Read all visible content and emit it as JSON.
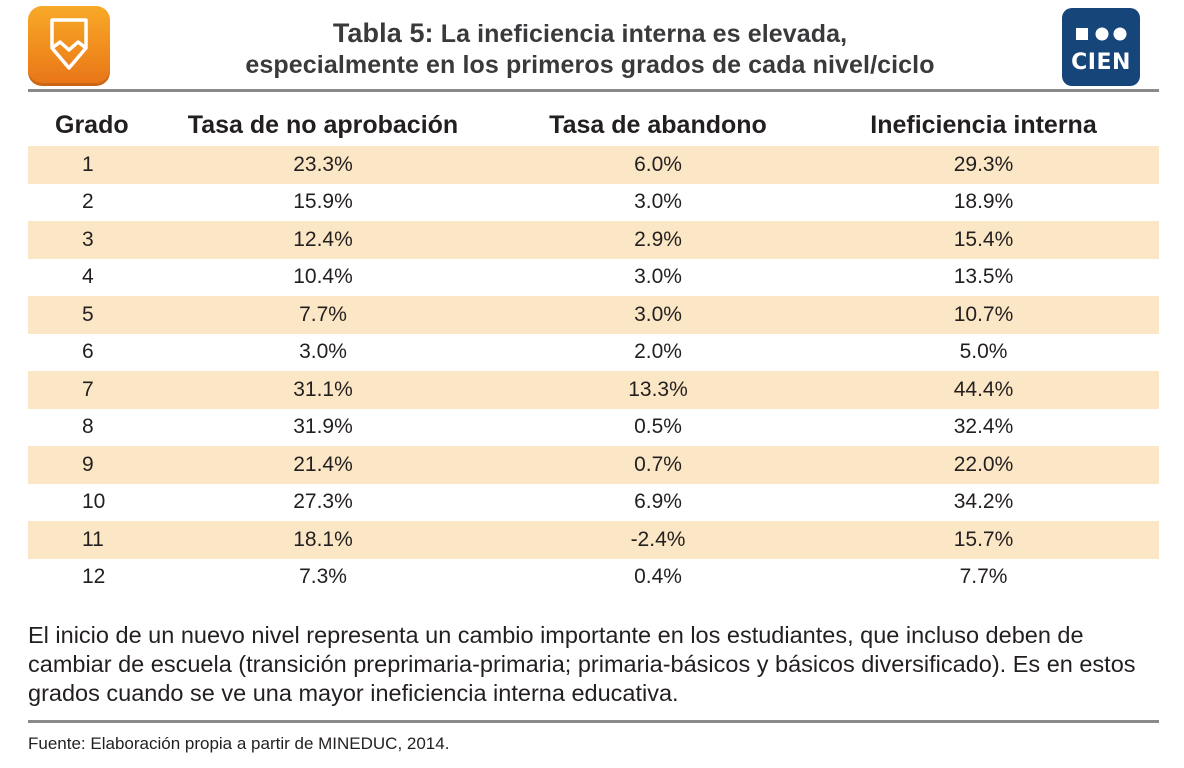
{
  "header": {
    "title_lead": "Tabla 5:",
    "title_rest": "La ineficiencia interna es elevada,",
    "title_line2": "especialmente en los primeros grados de cada nivel/ciclo"
  },
  "logo_right": {
    "brand": "CIEN"
  },
  "table": {
    "columns": [
      "Grado",
      "Tasa de no aprobación",
      "Tasa de abandono",
      "Ineficiencia interna"
    ],
    "rows": [
      [
        "1",
        "23.3%",
        "6.0%",
        "29.3%"
      ],
      [
        "2",
        "15.9%",
        "3.0%",
        "18.9%"
      ],
      [
        "3",
        "12.4%",
        "2.9%",
        "15.4%"
      ],
      [
        "4",
        "10.4%",
        "3.0%",
        "13.5%"
      ],
      [
        "5",
        "7.7%",
        "3.0%",
        "10.7%"
      ],
      [
        "6",
        "3.0%",
        "2.0%",
        "5.0%"
      ],
      [
        "7",
        "31.1%",
        "13.3%",
        "44.4%"
      ],
      [
        "8",
        "31.9%",
        "0.5%",
        "32.4%"
      ],
      [
        "9",
        "21.4%",
        "0.7%",
        "22.0%"
      ],
      [
        "10",
        "27.3%",
        "6.9%",
        "34.2%"
      ],
      [
        "11",
        "18.1%",
        "-2.4%",
        "15.7%"
      ],
      [
        "12",
        "7.3%",
        "0.4%",
        "7.7%"
      ]
    ]
  },
  "note": "El inicio de un nuevo nivel representa un cambio importante en los estudiantes, que incluso deben de cambiar de escuela (transición preprimaria-primaria; primaria-básicos y básicos diversificado). Es en estos grados cuando se ve una mayor ineficiencia interna educativa.",
  "source": "Fuente: Elaboración propia a partir de MINEDUC, 2014.",
  "colors": {
    "row_shade": "#fbe7c5",
    "logo_orange": "#f08a1c",
    "logo_blue": "#16457a",
    "rule": "#8a8a8c"
  }
}
